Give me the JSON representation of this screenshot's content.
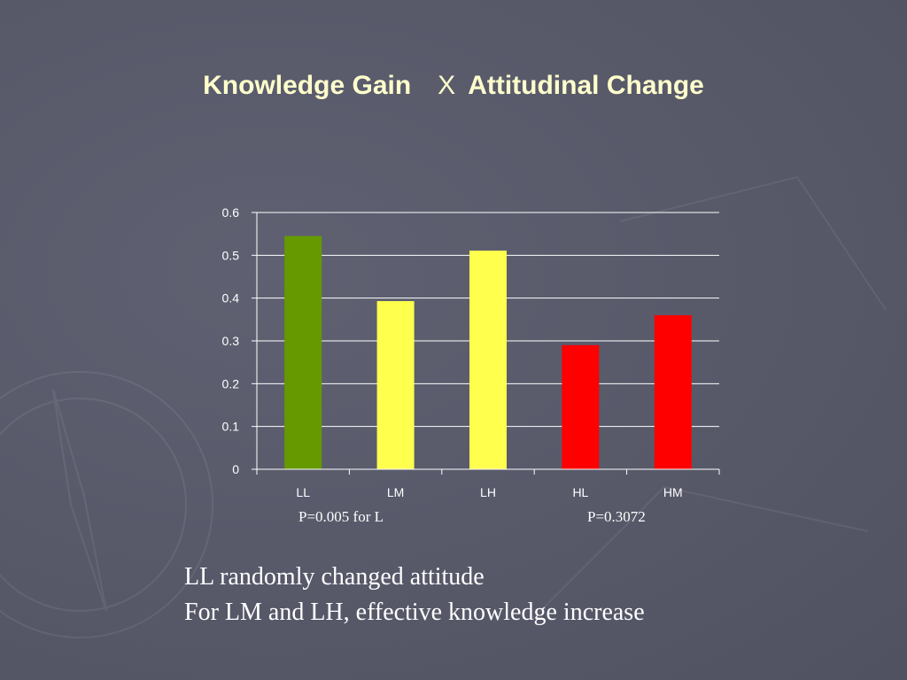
{
  "slide": {
    "title_part1": "Knowledge Gain",
    "title_separator": "X",
    "title_part2": "Attitudinal Change",
    "pvalue_left": "P=0.005 for L",
    "pvalue_right": "P=0.3072",
    "body_lines": [
      "LL randomly changed attitude",
      "For LM and LH, effective knowledge increase"
    ]
  },
  "colors": {
    "background": "#585a6a",
    "title": "#ffffcc",
    "green": "#669900",
    "yellow": "#ffff4d",
    "red": "#ff0000"
  },
  "chart_data": {
    "type": "bar",
    "title": "",
    "xlabel": "",
    "ylabel": "",
    "categories": [
      "LL",
      "LM",
      "LH",
      "HL",
      "HM"
    ],
    "values": [
      0.545,
      0.393,
      0.511,
      0.29,
      0.36
    ],
    "bar_colors": [
      "#669900",
      "#ffff4d",
      "#ffff4d",
      "#ff0000",
      "#ff0000"
    ],
    "ylim": [
      0,
      0.6
    ],
    "yticks": [
      "0",
      "0.1",
      "0.2",
      "0.3",
      "0.4",
      "0.5",
      "0.6"
    ],
    "grid": true,
    "legend": "none"
  }
}
